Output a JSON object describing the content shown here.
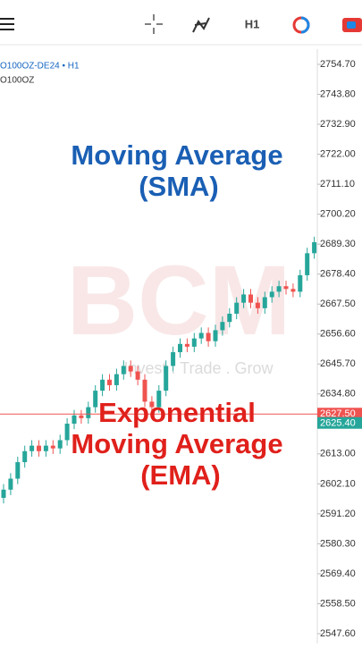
{
  "toolbar": {
    "timeframe": "H1"
  },
  "symbol": {
    "line1": "O100OZ-DE24 • H1",
    "line2": "O100OZ"
  },
  "overlay": {
    "sma_lines": [
      "Moving Average",
      "(SMA)"
    ],
    "ema_lines": [
      "Exponential",
      "Moving Average",
      "(EMA)"
    ],
    "watermark": "BCM",
    "tagline": "Invest . Trade . Grow"
  },
  "chart": {
    "type": "candlestick",
    "up_color": "#26a69a",
    "down_color": "#ef5350",
    "ylim": [
      2547.6,
      2754.7
    ],
    "yticks": [
      {
        "value": 2754.7,
        "label": "2754.70"
      },
      {
        "value": 2743.8,
        "label": "2743.80"
      },
      {
        "value": 2732.9,
        "label": "2732.90"
      },
      {
        "value": 2722.0,
        "label": "2722.00"
      },
      {
        "value": 2711.1,
        "label": "2711.10"
      },
      {
        "value": 2700.2,
        "label": "2700.20"
      },
      {
        "value": 2689.3,
        "label": "2689.30"
      },
      {
        "value": 2678.4,
        "label": "2678.40"
      },
      {
        "value": 2667.5,
        "label": "2667.50"
      },
      {
        "value": 2656.6,
        "label": "2656.60"
      },
      {
        "value": 2645.7,
        "label": "2645.70"
      },
      {
        "value": 2634.8,
        "label": "2634.80"
      },
      {
        "value": 2613.0,
        "label": "2613.00"
      },
      {
        "value": 2602.1,
        "label": "2602.10"
      },
      {
        "value": 2591.2,
        "label": "2591.20"
      },
      {
        "value": 2580.3,
        "label": "2580.30"
      },
      {
        "value": 2569.4,
        "label": "2569.40"
      },
      {
        "value": 2558.5,
        "label": "2558.50"
      },
      {
        "value": 2547.6,
        "label": "2547.60"
      }
    ],
    "price_labels": [
      {
        "value": 2627.5,
        "label": "2627.50",
        "color": "#ef5350"
      },
      {
        "value": 2625.4,
        "label": "2625.40",
        "color": "#26a69a"
      }
    ],
    "open": [
      2597,
      2600,
      2604,
      2610,
      2614,
      2616,
      2614,
      2616,
      2615,
      2618,
      2624,
      2627,
      2626,
      2630,
      2636,
      2640,
      2638,
      2642,
      2645,
      2643,
      2640,
      2632,
      2630,
      2636,
      2645,
      2650,
      2653,
      2652,
      2655,
      2657,
      2654,
      2658,
      2661,
      2664,
      2668,
      2671,
      2668,
      2666,
      2670,
      2672,
      2674,
      2673,
      2672,
      2678,
      2686
    ],
    "high": [
      2602,
      2606,
      2612,
      2616,
      2618,
      2618,
      2618,
      2618,
      2620,
      2626,
      2629,
      2629,
      2632,
      2638,
      2642,
      2642,
      2644,
      2647,
      2647,
      2645,
      2642,
      2634,
      2638,
      2647,
      2652,
      2655,
      2655,
      2657,
      2659,
      2659,
      2660,
      2663,
      2666,
      2670,
      2673,
      2673,
      2670,
      2672,
      2674,
      2676,
      2676,
      2675,
      2680,
      2688,
      2692
    ],
    "low": [
      2595,
      2598,
      2602,
      2608,
      2612,
      2612,
      2612,
      2613,
      2613,
      2616,
      2622,
      2624,
      2624,
      2628,
      2634,
      2636,
      2636,
      2640,
      2641,
      2638,
      2630,
      2628,
      2628,
      2634,
      2643,
      2648,
      2650,
      2650,
      2653,
      2652,
      2652,
      2656,
      2659,
      2662,
      2666,
      2666,
      2664,
      2664,
      2668,
      2670,
      2671,
      2670,
      2670,
      2676,
      2684
    ],
    "close": [
      2600,
      2604,
      2610,
      2614,
      2616,
      2614,
      2616,
      2615,
      2618,
      2624,
      2627,
      2626,
      2630,
      2636,
      2640,
      2638,
      2642,
      2645,
      2643,
      2640,
      2632,
      2630,
      2636,
      2645,
      2650,
      2653,
      2652,
      2655,
      2657,
      2654,
      2658,
      2661,
      2664,
      2668,
      2671,
      2668,
      2666,
      2670,
      2672,
      2674,
      2673,
      2672,
      2678,
      2686,
      2690
    ]
  }
}
